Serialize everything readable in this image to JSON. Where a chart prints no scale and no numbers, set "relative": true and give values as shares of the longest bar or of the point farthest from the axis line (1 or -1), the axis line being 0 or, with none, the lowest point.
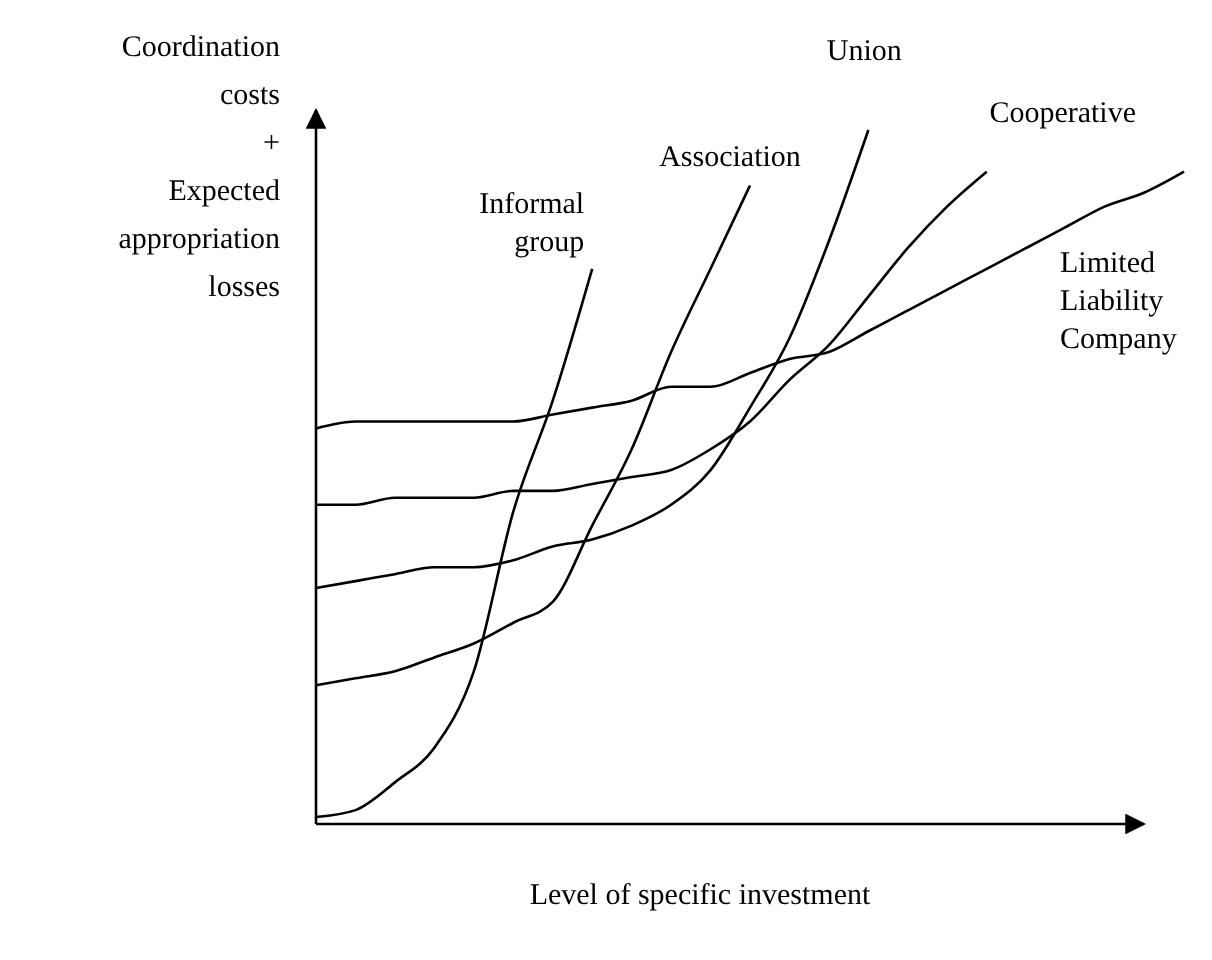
{
  "chart_data": {
    "type": "line",
    "relative": true,
    "xlabel": "Level of specific investment",
    "ylabel": "Coordination costs + Expected appropriation losses",
    "categories": [
      null,
      null,
      null,
      null,
      null,
      null,
      null,
      null,
      null,
      null,
      null,
      null,
      null,
      null,
      null,
      null,
      null,
      null,
      null,
      null,
      null,
      null,
      null
    ],
    "series": [
      {
        "name": "Informal group",
        "color": "#000000",
        "values": [
          0.01,
          0.02,
          0.06,
          0.11,
          0.22,
          0.45,
          0.61,
          0.8,
          null,
          null,
          null,
          null,
          null,
          null,
          null,
          null,
          null,
          null,
          null,
          null,
          null,
          null,
          null
        ]
      },
      {
        "name": "Association",
        "color": "#000000",
        "values": [
          0.2,
          0.21,
          0.22,
          0.24,
          0.26,
          0.29,
          0.32,
          0.43,
          0.54,
          0.68,
          0.8,
          0.92,
          null,
          null,
          null,
          null,
          null,
          null,
          null,
          null,
          null,
          null,
          null
        ]
      },
      {
        "name": "Union",
        "color": "#000000",
        "values": [
          0.34,
          0.35,
          0.36,
          0.37,
          0.37,
          0.38,
          0.4,
          0.41,
          0.43,
          0.46,
          0.51,
          0.6,
          0.7,
          0.84,
          1,
          null,
          null,
          null,
          null,
          null,
          null,
          null,
          null
        ]
      },
      {
        "name": "Cooperative",
        "color": "#000000",
        "values": [
          0.46,
          0.46,
          0.47,
          0.47,
          0.47,
          0.48,
          0.48,
          0.49,
          0.5,
          0.51,
          0.54,
          0.58,
          0.64,
          0.69,
          0.76,
          0.83,
          0.89,
          0.94,
          null,
          null,
          null,
          null,
          null
        ]
      },
      {
        "name": "Limited Liability Company",
        "color": "#000000",
        "values": [
          0.57,
          0.58,
          0.58,
          0.58,
          0.58,
          0.58,
          0.59,
          0.6,
          0.61,
          0.63,
          0.63,
          0.65,
          0.67,
          0.68,
          0.71,
          0.74,
          0.77,
          0.8,
          0.83,
          0.86,
          0.89,
          0.91,
          0.94
        ]
      }
    ]
  }
}
